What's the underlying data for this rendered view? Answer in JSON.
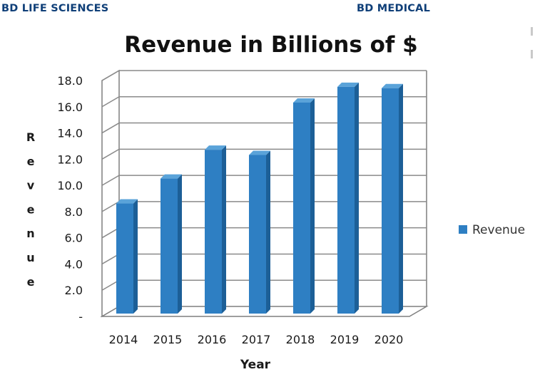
{
  "header": {
    "left_label": "BD LIFE SCIENCES",
    "right_label": "BD MEDICAL"
  },
  "chart_data": {
    "type": "bar",
    "title": "Revenue in Billions of $",
    "xlabel": "Year",
    "ylabel": "Revenue",
    "categories": [
      "2014",
      "2015",
      "2016",
      "2017",
      "2018",
      "2019",
      "2020"
    ],
    "series": [
      {
        "name": "Revenue",
        "values": [
          8.4,
          10.3,
          12.5,
          12.1,
          16.1,
          17.3,
          17.2
        ]
      }
    ],
    "ylim": [
      0,
      18
    ],
    "yticks": [
      "-",
      "2.0",
      "4.0",
      "6.0",
      "8.0",
      "10.0",
      "12.0",
      "14.0",
      "16.0",
      "18.0"
    ],
    "grid": true,
    "legend_position": "right",
    "bar_color": "#2e7fc3",
    "bar_dark_color": "#1c5f97",
    "bar_top_color": "#5aa3d9"
  }
}
